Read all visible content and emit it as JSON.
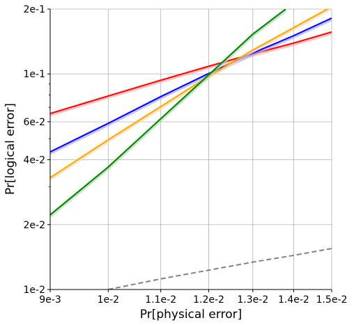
{
  "chart_data": {
    "type": "line",
    "title": "",
    "xlabel": "Pr[physical error]",
    "ylabel": "Pr[logical error]",
    "x_scale": "log",
    "y_scale": "log",
    "xlim": [
      0.009,
      0.015
    ],
    "ylim": [
      0.01,
      0.2
    ],
    "grid": true,
    "x_ticks": [
      {
        "value": 0.009,
        "label": "9e-3"
      },
      {
        "value": 0.01,
        "label": "1e-2"
      },
      {
        "value": 0.011,
        "label": "1.1e-2"
      },
      {
        "value": 0.012,
        "label": "1.2e-2"
      },
      {
        "value": 0.013,
        "label": "1.3e-2"
      },
      {
        "value": 0.014,
        "label": "1.4e-2"
      },
      {
        "value": 0.015,
        "label": "1.5e-2"
      }
    ],
    "y_ticks": [
      {
        "value": 0.01,
        "label": "1e-2"
      },
      {
        "value": 0.02,
        "label": "2e-2"
      },
      {
        "value": 0.04,
        "label": "4e-2"
      },
      {
        "value": 0.06,
        "label": "6e-2"
      },
      {
        "value": 0.1,
        "label": "1e-1"
      },
      {
        "value": 0.2,
        "label": "2e-1"
      }
    ],
    "y_minor_ticks": [
      0.03,
      0.05,
      0.07,
      0.08,
      0.09
    ],
    "series": [
      {
        "color": "#ff0000",
        "band_color": "#ffaaaa",
        "dash": false,
        "x": [
          0.009,
          0.01,
          0.011,
          0.012,
          0.013,
          0.014,
          0.015
        ],
        "y": [
          0.0655,
          0.079,
          0.0935,
          0.1085,
          0.124,
          0.139,
          0.1565
        ]
      },
      {
        "color": "#0000ff",
        "band_color": "#aaaaff",
        "dash": false,
        "x": [
          0.009,
          0.01,
          0.011,
          0.012,
          0.013,
          0.014,
          0.015
        ],
        "y": [
          0.0435,
          0.059,
          0.0785,
          0.1005,
          0.125,
          0.1505,
          0.1815
        ]
      },
      {
        "color": "#ffa500",
        "band_color": "#ffd8a0",
        "dash": false,
        "x": [
          0.009,
          0.01,
          0.011,
          0.012,
          0.013,
          0.014,
          0.015
        ],
        "y": [
          0.033,
          0.0495,
          0.0705,
          0.0975,
          0.129,
          0.164,
          0.205
        ]
      },
      {
        "color": "#008000",
        "band_color": "#a8dca8",
        "dash": false,
        "x": [
          0.009,
          0.01,
          0.011,
          0.012,
          0.013,
          0.0138
        ],
        "y": [
          0.0222,
          0.037,
          0.062,
          0.099,
          0.153,
          0.2
        ]
      },
      {
        "color": "#808080",
        "band_color": "",
        "dash": true,
        "x": [
          0.01,
          0.011,
          0.012,
          0.013,
          0.014,
          0.015
        ],
        "y": [
          0.01,
          0.0112,
          0.0123,
          0.0134,
          0.0144,
          0.0155
        ]
      }
    ]
  }
}
